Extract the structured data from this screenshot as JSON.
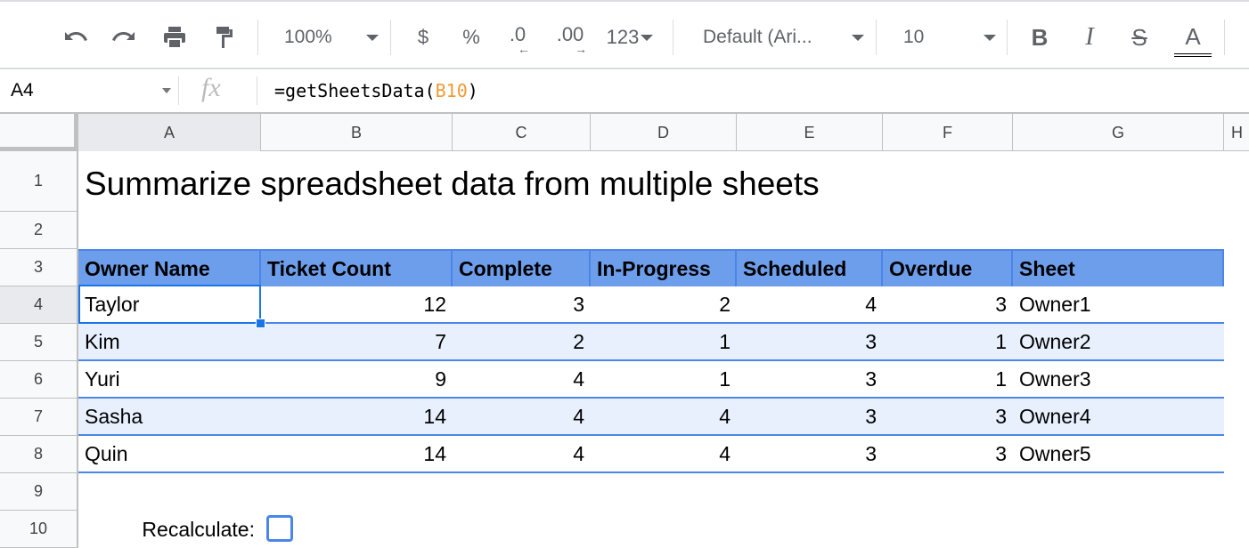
{
  "toolbar": {
    "undo": "undo-icon",
    "redo": "redo-icon",
    "print": "print-icon",
    "paint_format": "paint-format-icon",
    "zoom": "100%",
    "currency": "$",
    "percent": "%",
    "dec_decrease": ".0",
    "dec_increase": ".00",
    "more_formats": "123",
    "font": "Default (Ari...",
    "font_size": "10",
    "bold": "B",
    "italic": "I",
    "strike": "S",
    "text_color": "A"
  },
  "formula_bar": {
    "cell_ref": "A4",
    "fx": "fx",
    "formula_prefix": "=getSheetsData(",
    "formula_ref": "B10",
    "formula_suffix": ")",
    "ref_color": "#f09a36"
  },
  "columns": [
    "A",
    "B",
    "C",
    "D",
    "E",
    "F",
    "G",
    "H"
  ],
  "rows": [
    "1",
    "2",
    "3",
    "4",
    "5",
    "6",
    "7",
    "8",
    "9",
    "10"
  ],
  "sheet": {
    "title": "Summarize spreadsheet data from multiple sheets",
    "headers": [
      "Owner Name",
      "Ticket Count",
      "Complete",
      "In-Progress",
      "Scheduled",
      "Overdue",
      "Sheet"
    ],
    "data": [
      [
        "Taylor",
        "12",
        "3",
        "2",
        "4",
        "3",
        "Owner1"
      ],
      [
        "Kim",
        "7",
        "2",
        "1",
        "3",
        "1",
        "Owner2"
      ],
      [
        "Yuri",
        "9",
        "4",
        "1",
        "3",
        "1",
        "Owner3"
      ],
      [
        "Sasha",
        "14",
        "4",
        "4",
        "3",
        "3",
        "Owner4"
      ],
      [
        "Quin",
        "14",
        "4",
        "4",
        "3",
        "3",
        "Owner5"
      ]
    ],
    "recalc_label": "Recalculate:",
    "recalc_checked": false,
    "selected_cell": "A4"
  },
  "colors": {
    "header_bg": "#6d9eeb",
    "band_bg": "#e8f0fe",
    "border": "#4a86e8",
    "selection": "#1a73e8"
  }
}
